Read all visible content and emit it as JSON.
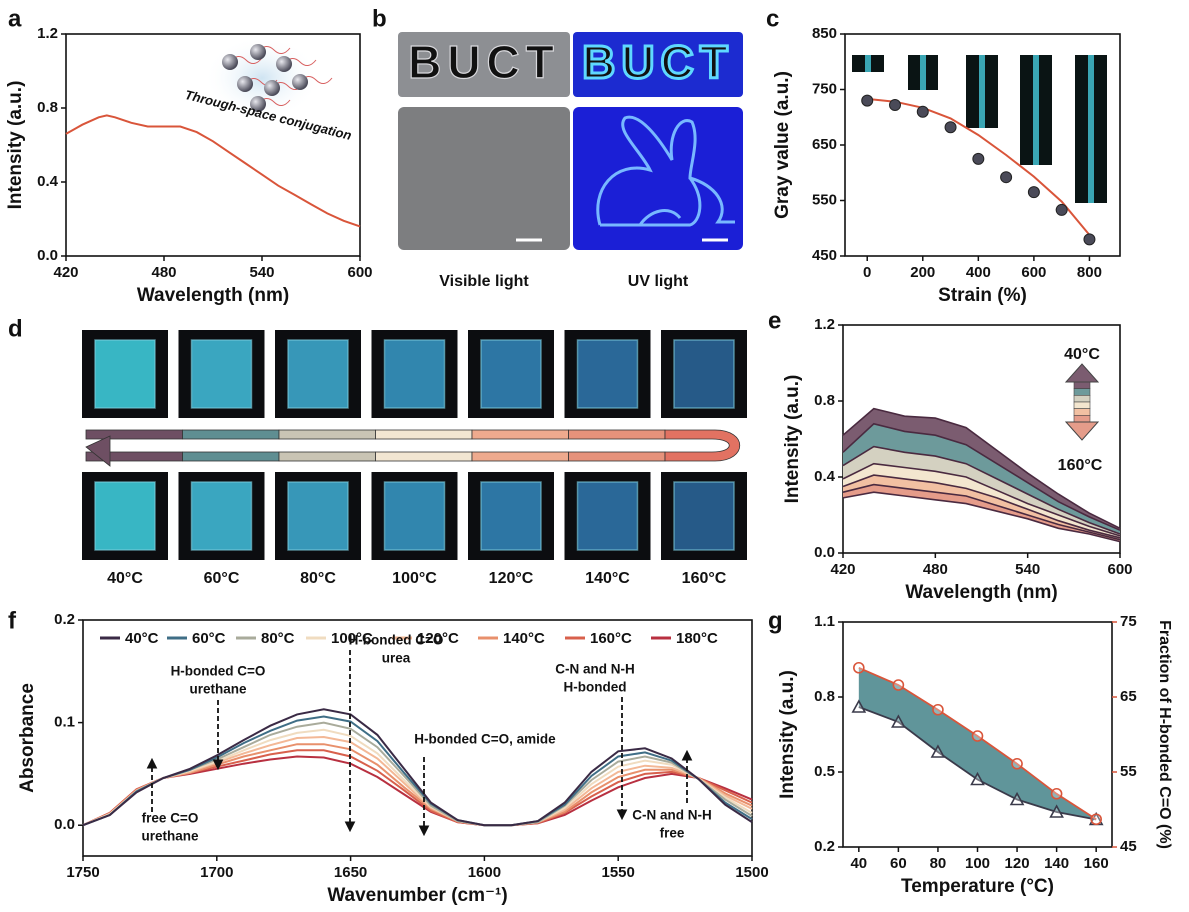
{
  "chart_data": [
    {
      "type": "line",
      "panel": "a",
      "xlabel": "Wavelength (nm)",
      "ylabel": "Intensity (a.u.)",
      "annotation": "Through-space conjugation",
      "x": [
        420,
        430,
        440,
        445,
        450,
        460,
        470,
        480,
        490,
        500,
        510,
        520,
        530,
        540,
        550,
        560,
        570,
        580,
        590,
        600
      ],
      "values": [
        0.66,
        0.71,
        0.75,
        0.76,
        0.75,
        0.72,
        0.7,
        0.7,
        0.7,
        0.67,
        0.62,
        0.56,
        0.5,
        0.44,
        0.38,
        0.33,
        0.28,
        0.23,
        0.19,
        0.16
      ],
      "color": "#d9553a",
      "xlim": [
        420,
        600
      ],
      "xticks": [
        420,
        480,
        540,
        600
      ],
      "ylim": [
        0,
        1.2
      ],
      "yticks": [
        {
          "value": 0,
          "label": "0.0"
        },
        0.4,
        0.8,
        1.2
      ]
    },
    {
      "type": "image",
      "panel": "b",
      "image_text": "BUCT",
      "captions": [
        "Visible light",
        "UV light"
      ]
    },
    {
      "type": "scatter",
      "panel": "c",
      "xlabel": "Strain (%)",
      "ylabel": "Gray value (a.u.)",
      "x": [
        0,
        100,
        200,
        300,
        400,
        500,
        600,
        700,
        800
      ],
      "values": [
        730,
        722,
        710,
        682,
        625,
        592,
        565,
        533,
        480
      ],
      "fit": [
        733,
        728,
        717,
        698,
        668,
        632,
        593,
        548,
        488
      ],
      "marker_color": "#4a4a58",
      "fit_color": "#d9553a",
      "xlim": [
        -80,
        910
      ],
      "xticks": [
        0,
        200,
        400,
        600,
        800
      ],
      "ylim": [
        450,
        850
      ],
      "yticks": [
        450,
        550,
        650,
        750,
        850
      ]
    },
    {
      "type": "image",
      "panel": "d",
      "captions": [
        "40°C",
        "60°C",
        "80°C",
        "100°C",
        "120°C",
        "140°C",
        "160°C"
      ]
    },
    {
      "type": "line",
      "panel": "e",
      "xlabel": "Wavelength (nm)",
      "ylabel": "Intensity (a.u.)",
      "x": [
        420,
        440,
        460,
        480,
        500,
        520,
        540,
        560,
        580,
        600
      ],
      "series": [
        {
          "name": "40°C",
          "values": [
            0.62,
            0.76,
            0.72,
            0.71,
            0.66,
            0.54,
            0.42,
            0.31,
            0.21,
            0.13
          ]
        },
        {
          "values": [
            0.53,
            0.68,
            0.64,
            0.62,
            0.57,
            0.47,
            0.37,
            0.27,
            0.19,
            0.12
          ]
        },
        {
          "values": [
            0.46,
            0.56,
            0.53,
            0.51,
            0.47,
            0.39,
            0.31,
            0.23,
            0.16,
            0.1
          ]
        },
        {
          "values": [
            0.39,
            0.47,
            0.45,
            0.43,
            0.4,
            0.33,
            0.26,
            0.2,
            0.14,
            0.09
          ]
        },
        {
          "values": [
            0.35,
            0.41,
            0.39,
            0.37,
            0.34,
            0.29,
            0.23,
            0.17,
            0.12,
            0.08
          ]
        },
        {
          "values": [
            0.32,
            0.36,
            0.34,
            0.32,
            0.3,
            0.25,
            0.2,
            0.15,
            0.11,
            0.07
          ]
        },
        {
          "name": "160°C",
          "values": [
            0.29,
            0.32,
            0.3,
            0.28,
            0.26,
            0.22,
            0.18,
            0.13,
            0.1,
            0.06
          ]
        }
      ],
      "line_color": "#4a2a40",
      "band_colors": [
        "#7b5c70",
        "#6d9a9b",
        "#d4d1c1",
        "#f3e6cf",
        "#f2c0a2",
        "#e59c8a"
      ],
      "xlim": [
        420,
        600
      ],
      "xticks": [
        420,
        480,
        540,
        600
      ],
      "ylim": [
        0,
        1.2
      ],
      "yticks": [
        {
          "value": 0,
          "label": "0.0"
        },
        0.4,
        0.8,
        1.2
      ]
    },
    {
      "type": "line",
      "panel": "f",
      "xlabel": "Wavenumber (cm⁻¹)",
      "ylabel": "Absorbance",
      "x": [
        1750,
        1740,
        1730,
        1720,
        1710,
        1700,
        1690,
        1680,
        1670,
        1660,
        1650,
        1640,
        1630,
        1620,
        1610,
        1600,
        1590,
        1580,
        1570,
        1560,
        1550,
        1540,
        1530,
        1520,
        1510,
        1500
      ],
      "series": [
        {
          "name": "40°C",
          "color": "#3a2a45",
          "values": [
            0,
            0.01,
            0.032,
            0.046,
            0.055,
            0.068,
            0.083,
            0.097,
            0.108,
            0.113,
            0.108,
            0.088,
            0.055,
            0.022,
            0.005,
            0,
            0,
            0.004,
            0.022,
            0.052,
            0.072,
            0.075,
            0.065,
            0.045,
            0.02,
            0.003
          ]
        },
        {
          "name": "60°C",
          "color": "#3f6e86",
          "values": [
            0,
            0.01,
            0.033,
            0.046,
            0.054,
            0.066,
            0.08,
            0.092,
            0.102,
            0.106,
            0.101,
            0.082,
            0.051,
            0.021,
            0.005,
            0,
            0,
            0.004,
            0.02,
            0.048,
            0.067,
            0.071,
            0.063,
            0.045,
            0.022,
            0.006
          ]
        },
        {
          "name": "80°C",
          "color": "#a9ab9b",
          "values": [
            0,
            0.01,
            0.033,
            0.046,
            0.054,
            0.064,
            0.076,
            0.088,
            0.096,
            0.1,
            0.094,
            0.076,
            0.048,
            0.019,
            0.004,
            0,
            0,
            0.003,
            0.019,
            0.044,
            0.062,
            0.067,
            0.061,
            0.045,
            0.025,
            0.009
          ]
        },
        {
          "name": "100°C",
          "color": "#f0dcc0",
          "values": [
            0,
            0.011,
            0.033,
            0.046,
            0.053,
            0.062,
            0.073,
            0.083,
            0.09,
            0.093,
            0.087,
            0.07,
            0.044,
            0.018,
            0.004,
            0,
            0,
            0.003,
            0.017,
            0.04,
            0.057,
            0.063,
            0.059,
            0.045,
            0.027,
            0.012
          ]
        },
        {
          "name": "120°C",
          "color": "#f3b896",
          "values": [
            0,
            0.011,
            0.034,
            0.046,
            0.052,
            0.061,
            0.07,
            0.078,
            0.085,
            0.086,
            0.081,
            0.065,
            0.041,
            0.017,
            0.004,
            0,
            0,
            0.003,
            0.015,
            0.036,
            0.052,
            0.058,
            0.056,
            0.046,
            0.029,
            0.016
          ]
        },
        {
          "name": "140°C",
          "color": "#e8906c",
          "values": [
            0,
            0.011,
            0.034,
            0.046,
            0.051,
            0.059,
            0.067,
            0.073,
            0.079,
            0.079,
            0.074,
            0.059,
            0.037,
            0.016,
            0.004,
            0,
            0,
            0.003,
            0.013,
            0.032,
            0.047,
            0.054,
            0.054,
            0.046,
            0.031,
            0.019
          ]
        },
        {
          "name": "160°C",
          "color": "#d8604c",
          "values": [
            0,
            0.012,
            0.035,
            0.046,
            0.051,
            0.057,
            0.063,
            0.069,
            0.073,
            0.073,
            0.067,
            0.053,
            0.034,
            0.014,
            0.003,
            0,
            0,
            0.002,
            0.012,
            0.028,
            0.042,
            0.05,
            0.052,
            0.046,
            0.034,
            0.022
          ]
        },
        {
          "name": "180°C",
          "color": "#b83040",
          "values": [
            0,
            0.012,
            0.035,
            0.046,
            0.05,
            0.055,
            0.06,
            0.064,
            0.067,
            0.066,
            0.06,
            0.047,
            0.03,
            0.013,
            0.003,
            0,
            0,
            0.002,
            0.01,
            0.024,
            0.037,
            0.046,
            0.05,
            0.046,
            0.036,
            0.025
          ]
        }
      ],
      "annotations": [
        {
          "text": [
            "H-bonded C=O",
            "urethane"
          ]
        },
        {
          "text": [
            "H-bonded C=O",
            "urea"
          ]
        },
        {
          "text": [
            "H-bonded C=O, amide"
          ]
        },
        {
          "text": [
            "C-N and N-H",
            "H-bonded"
          ]
        },
        {
          "text": [
            "free C=O",
            "urethane"
          ]
        },
        {
          "text": [
            "C-N and N-H",
            "free"
          ]
        }
      ],
      "xlim": [
        1750,
        1500
      ],
      "xticks": [
        1750,
        1700,
        1650,
        1600,
        1550,
        1500
      ],
      "ylim": [
        -0.03,
        0.2
      ],
      "yticks": [
        {
          "value": 0,
          "label": "0.0"
        },
        0.1,
        0.2
      ]
    },
    {
      "type": "dual",
      "panel": "g",
      "xlabel": "Temperature (°C)",
      "ylabel": "Intensity (a.u.)",
      "y2label": "Fraction of H-bonded C=O (%)",
      "x": [
        40,
        60,
        80,
        100,
        120,
        140,
        160
      ],
      "series": [
        {
          "values": [
            0.76,
            0.7,
            0.58,
            0.47,
            0.39,
            0.34,
            0.31
          ],
          "color": "#3a3a4a",
          "marker": "triangle"
        },
        {
          "values": [
            68.9,
            66.6,
            63.3,
            59.8,
            56.1,
            52.1,
            48.7
          ],
          "color": "#d9553a",
          "marker": "circle",
          "axis": "y2"
        }
      ],
      "fill_color": "#4f8a8f",
      "xlim": [
        32,
        168
      ],
      "xticks": [
        40,
        60,
        80,
        100,
        120,
        140,
        160
      ],
      "ylim": [
        0.2,
        1.1
      ],
      "yticks": [
        0.2,
        0.5,
        0.8,
        1.1
      ],
      "y2lim": [
        45,
        75
      ],
      "y2ticks": [
        45,
        55,
        65,
        75
      ]
    }
  ]
}
